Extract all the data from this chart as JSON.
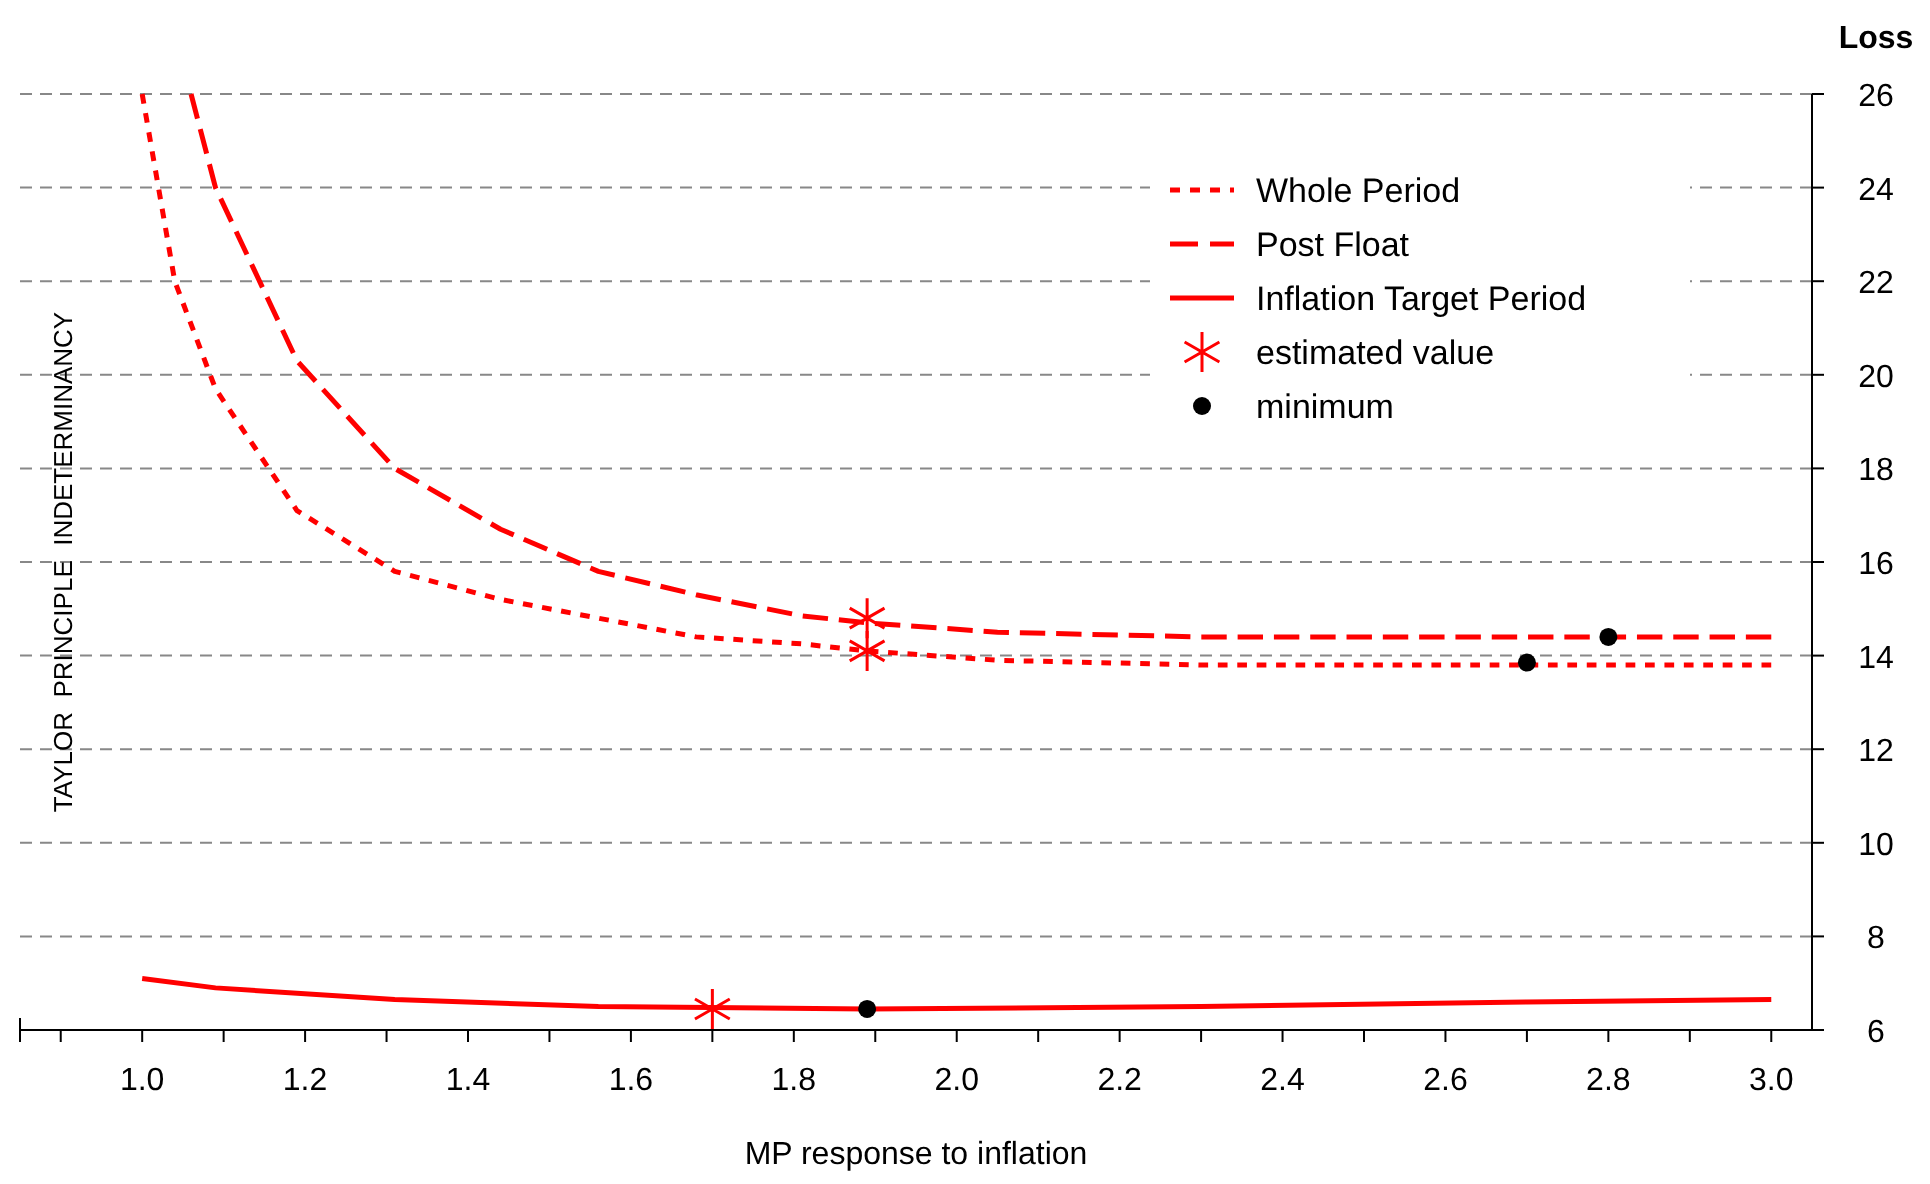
{
  "chart_data": {
    "type": "line",
    "xlabel": "MP response to inflation",
    "ylabel": "Loss",
    "annotations": [
      "TAYLOR  PRINCIPLE  INDETERMINANCY"
    ],
    "xlim": [
      0.85,
      3.05
    ],
    "xticks": [
      {
        "value": 0.9,
        "label": null
      },
      {
        "value": 1,
        "label": "1.0"
      },
      {
        "value": 1.1,
        "label": null
      },
      {
        "value": 1.2,
        "label": "1.2"
      },
      {
        "value": 1.3,
        "label": null
      },
      {
        "value": 1.4,
        "label": "1.4"
      },
      {
        "value": 1.5,
        "label": null
      },
      {
        "value": 1.6,
        "label": "1.6"
      },
      {
        "value": 1.7,
        "label": null
      },
      {
        "value": 1.8,
        "label": "1.8"
      },
      {
        "value": 1.9,
        "label": null
      },
      {
        "value": 2,
        "label": "2.0"
      },
      {
        "value": 2.1,
        "label": null
      },
      {
        "value": 2.2,
        "label": "2.2"
      },
      {
        "value": 2.3,
        "label": null
      },
      {
        "value": 2.4,
        "label": "2.4"
      },
      {
        "value": 2.5,
        "label": null
      },
      {
        "value": 2.6,
        "label": "2.6"
      },
      {
        "value": 2.7,
        "label": null
      },
      {
        "value": 2.8,
        "label": "2.8"
      },
      {
        "value": 2.9,
        "label": null
      },
      {
        "value": 3,
        "label": "3.0"
      }
    ],
    "ylim": [
      6,
      26
    ],
    "yticks": [
      6,
      8,
      10,
      12,
      14,
      16,
      18,
      20,
      22,
      24,
      26
    ],
    "grid": "y",
    "legend": "top right",
    "series": [
      {
        "name": "Whole Period",
        "line_style": "dotted",
        "marker": "none",
        "color": "#ff0000",
        "x": [
          1.0,
          1.04,
          1.09,
          1.19,
          1.31,
          1.44,
          1.56,
          1.68,
          1.81,
          1.89,
          2.05,
          2.3,
          2.6,
          3.0
        ],
        "values": [
          26.0,
          22.0,
          19.7,
          17.1,
          15.8,
          15.2,
          14.8,
          14.4,
          14.25,
          14.1,
          13.9,
          13.8,
          13.8,
          13.8
        ]
      },
      {
        "name": "Post Float",
        "line_style": "dashed",
        "marker": "none",
        "color": "#ff0000",
        "x": [
          1.06,
          1.09,
          1.19,
          1.31,
          1.44,
          1.56,
          1.68,
          1.81,
          1.89,
          2.05,
          2.3,
          2.8,
          3.0
        ],
        "values": [
          26.0,
          24.0,
          20.3,
          18.0,
          16.7,
          15.8,
          15.3,
          14.85,
          14.7,
          14.5,
          14.4,
          14.4,
          14.4
        ]
      },
      {
        "name": "Inflation Target Period",
        "line_style": "solid",
        "marker": "none",
        "color": "#ff0000",
        "x": [
          1.0,
          1.09,
          1.31,
          1.56,
          1.89,
          2.3,
          2.7,
          3.0
        ],
        "values": [
          7.1,
          6.9,
          6.65,
          6.5,
          6.45,
          6.5,
          6.6,
          6.65
        ]
      },
      {
        "name": "estimated value",
        "type": "scatter",
        "marker": "cross",
        "color": "#ff0000",
        "x": [
          1.89,
          1.89,
          1.7
        ],
        "values": [
          14.1,
          14.8,
          6.45
        ]
      },
      {
        "name": "minimum",
        "type": "scatter",
        "marker": "circle",
        "color": "#000000",
        "x": [
          2.7,
          2.8,
          1.89
        ],
        "values": [
          13.85,
          14.4,
          6.45
        ]
      }
    ]
  }
}
